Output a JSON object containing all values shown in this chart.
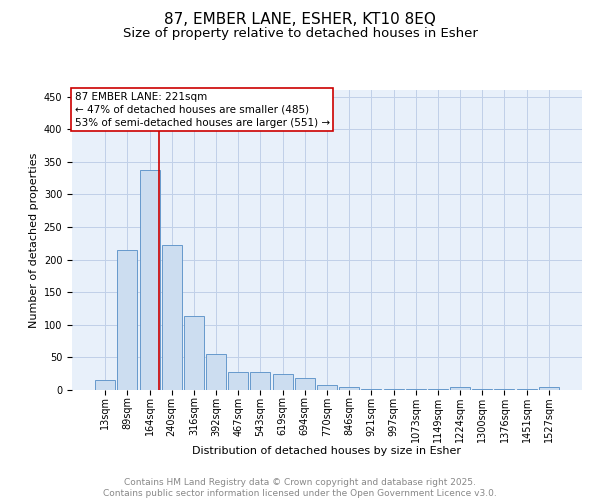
{
  "title_line1": "87, EMBER LANE, ESHER, KT10 8EQ",
  "title_line2": "Size of property relative to detached houses in Esher",
  "xlabel": "Distribution of detached houses by size in Esher",
  "ylabel": "Number of detached properties",
  "bin_labels": [
    "13sqm",
    "89sqm",
    "164sqm",
    "240sqm",
    "316sqm",
    "392sqm",
    "467sqm",
    "543sqm",
    "619sqm",
    "694sqm",
    "770sqm",
    "846sqm",
    "921sqm",
    "997sqm",
    "1073sqm",
    "1149sqm",
    "1224sqm",
    "1300sqm",
    "1376sqm",
    "1451sqm",
    "1527sqm"
  ],
  "bar_heights": [
    15,
    215,
    338,
    223,
    113,
    55,
    28,
    28,
    25,
    18,
    7,
    5,
    2,
    1,
    1,
    1,
    4,
    1,
    1,
    1,
    4
  ],
  "bar_color": "#ccddf0",
  "bar_edge_color": "#6699cc",
  "grid_color": "#c0d0e8",
  "background_color": "#e8f0fa",
  "annotation_text": "87 EMBER LANE: 221sqm\n← 47% of detached houses are smaller (485)\n53% of semi-detached houses are larger (551) →",
  "annotation_box_color": "#cc0000",
  "red_line_x": 2.42,
  "ylim": [
    0,
    460
  ],
  "yticks": [
    0,
    50,
    100,
    150,
    200,
    250,
    300,
    350,
    400,
    450
  ],
  "footer_text": "Contains HM Land Registry data © Crown copyright and database right 2025.\nContains public sector information licensed under the Open Government Licence v3.0.",
  "title_fontsize": 11,
  "subtitle_fontsize": 9.5,
  "label_fontsize": 8,
  "tick_fontsize": 7,
  "footer_fontsize": 6.5,
  "annotation_fontsize": 7.5
}
